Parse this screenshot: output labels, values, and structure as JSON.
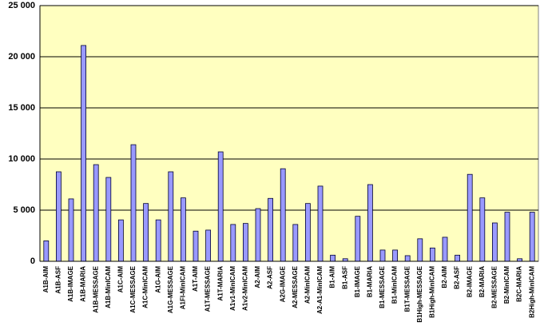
{
  "chart_data": {
    "type": "bar",
    "categories": [
      "A1B-AIM",
      "A1B-ASF",
      "A1B-IMAGE",
      "A1B-MARIA",
      "A1B-MESSAGE",
      "A1B-MinICAM",
      "A1C-AIM",
      "A1C-MESSAGE",
      "A1C-MinICAM",
      "A1G-AIM",
      "A1G-MESSAGE",
      "A1FI-MinICAM",
      "A1T-AIM",
      "A1T-MESSAGE",
      "A1T-MARIA",
      "A1v1-MinICAM",
      "A1v2-MinICAM",
      "A2-AIM",
      "A2-ASF",
      "A2G-IMAGE",
      "A2-MESSAGE",
      "A2-MinICAM",
      "A2-A1-MinICAM",
      "B1-AIM",
      "B1-ASF",
      "B1-IMAGE",
      "B1-MARIA",
      "B1-MESSAGE",
      "B1-MinICAM",
      "B1T-MESSAGE",
      "B1High-MESSAGE",
      "B1High-MinICAM",
      "B2-AIM",
      "B2-ASF",
      "B2-IMAGE",
      "B2-MARIA",
      "B2-MESSAGE",
      "B2-MinICAM",
      "B2C-MARIA",
      "B2High-MinICAM"
    ],
    "values": [
      2000,
      8750,
      6100,
      21100,
      9450,
      8200,
      4050,
      11400,
      5650,
      4050,
      8750,
      6200,
      2950,
      3050,
      10700,
      3600,
      3700,
      5150,
      6150,
      9050,
      3600,
      5650,
      7350,
      600,
      250,
      4400,
      7500,
      1100,
      1100,
      550,
      2200,
      1300,
      2350,
      600,
      8500,
      6200,
      3750,
      4800,
      250,
      4800
    ],
    "color": "#9999ff",
    "ylim": [
      0,
      25000
    ],
    "yticks": [
      0,
      {
        "value": 5000,
        "label": "5 000"
      },
      {
        "value": 10000,
        "label": "10 000"
      },
      {
        "value": 15000,
        "label": "15 000"
      },
      {
        "value": 20000,
        "label": "20 000"
      },
      {
        "value": 25000,
        "label": "25 000"
      }
    ],
    "grid": true
  }
}
